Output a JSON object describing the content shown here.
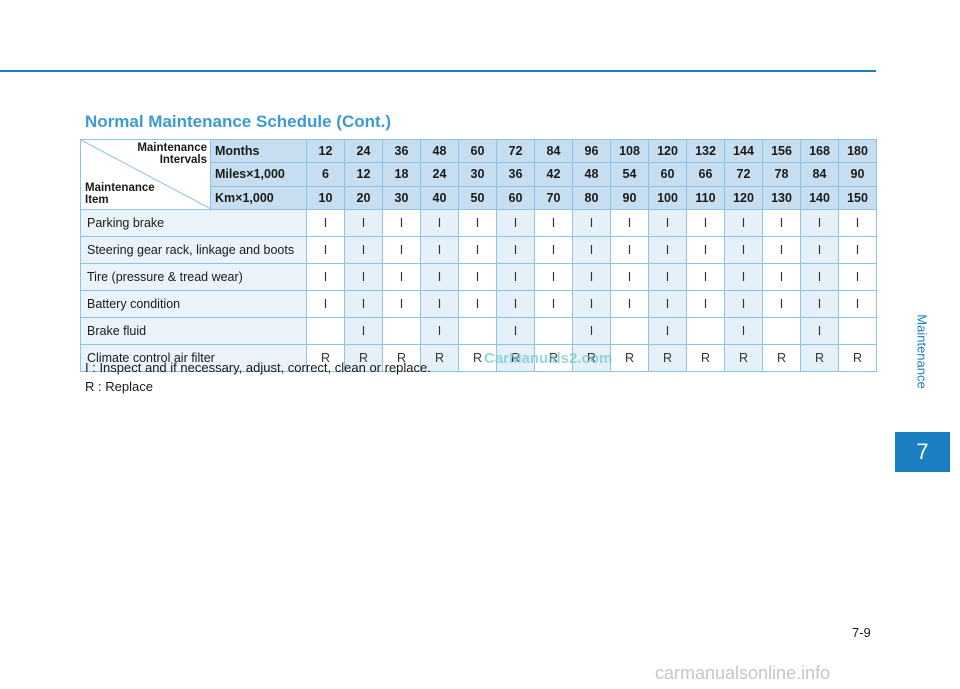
{
  "page": {
    "side_label": "Maintenance",
    "chapter": "7",
    "title": "Normal Maintenance Schedule (Cont.)",
    "page_number": "7-9",
    "watermark": "CarManuals2.com",
    "footer_site": "carmanualsonline.info"
  },
  "table": {
    "corner": {
      "top_line1": "Maintenance",
      "top_line2": "Intervals",
      "bottom_line1": "Maintenance",
      "bottom_line2": "Item"
    },
    "header_rows": [
      {
        "label": "Months",
        "values": [
          "12",
          "24",
          "36",
          "48",
          "60",
          "72",
          "84",
          "96",
          "108",
          "120",
          "132",
          "144",
          "156",
          "168",
          "180"
        ]
      },
      {
        "label": "Miles×1,000",
        "values": [
          "6",
          "12",
          "18",
          "24",
          "30",
          "36",
          "42",
          "48",
          "54",
          "60",
          "66",
          "72",
          "78",
          "84",
          "90"
        ]
      },
      {
        "label": "Km×1,000",
        "values": [
          "10",
          "20",
          "30",
          "40",
          "50",
          "60",
          "70",
          "80",
          "90",
          "100",
          "110",
          "120",
          "130",
          "140",
          "150"
        ]
      }
    ],
    "rows": [
      {
        "item": "Parking brake",
        "values": [
          "I",
          "I",
          "I",
          "I",
          "I",
          "I",
          "I",
          "I",
          "I",
          "I",
          "I",
          "I",
          "I",
          "I",
          "I"
        ]
      },
      {
        "item": "Steering gear rack, linkage and boots",
        "values": [
          "I",
          "I",
          "I",
          "I",
          "I",
          "I",
          "I",
          "I",
          "I",
          "I",
          "I",
          "I",
          "I",
          "I",
          "I"
        ]
      },
      {
        "item": "Tire (pressure & tread wear)",
        "values": [
          "I",
          "I",
          "I",
          "I",
          "I",
          "I",
          "I",
          "I",
          "I",
          "I",
          "I",
          "I",
          "I",
          "I",
          "I"
        ]
      },
      {
        "item": "Battery condition",
        "values": [
          "I",
          "I",
          "I",
          "I",
          "I",
          "I",
          "I",
          "I",
          "I",
          "I",
          "I",
          "I",
          "I",
          "I",
          "I"
        ]
      },
      {
        "item": "Brake fluid",
        "values": [
          "",
          "I",
          "",
          "I",
          "",
          "I",
          "",
          "I",
          "",
          "I",
          "",
          "I",
          "",
          "I",
          ""
        ]
      },
      {
        "item": "Climate control air filter",
        "values": [
          "R",
          "R",
          "R",
          "R",
          "R",
          "R",
          "R",
          "R",
          "R",
          "R",
          "R",
          "R",
          "R",
          "R",
          "R"
        ]
      }
    ]
  },
  "legend": [
    "I : Inspect and if necessary, adjust, correct, clean or replace.",
    "R : Replace"
  ],
  "colors": {
    "accent": "#1a7fc1",
    "title": "#3c9bd0",
    "header_fill": "#c6def0",
    "row_fill": "#eaf3fa"
  }
}
